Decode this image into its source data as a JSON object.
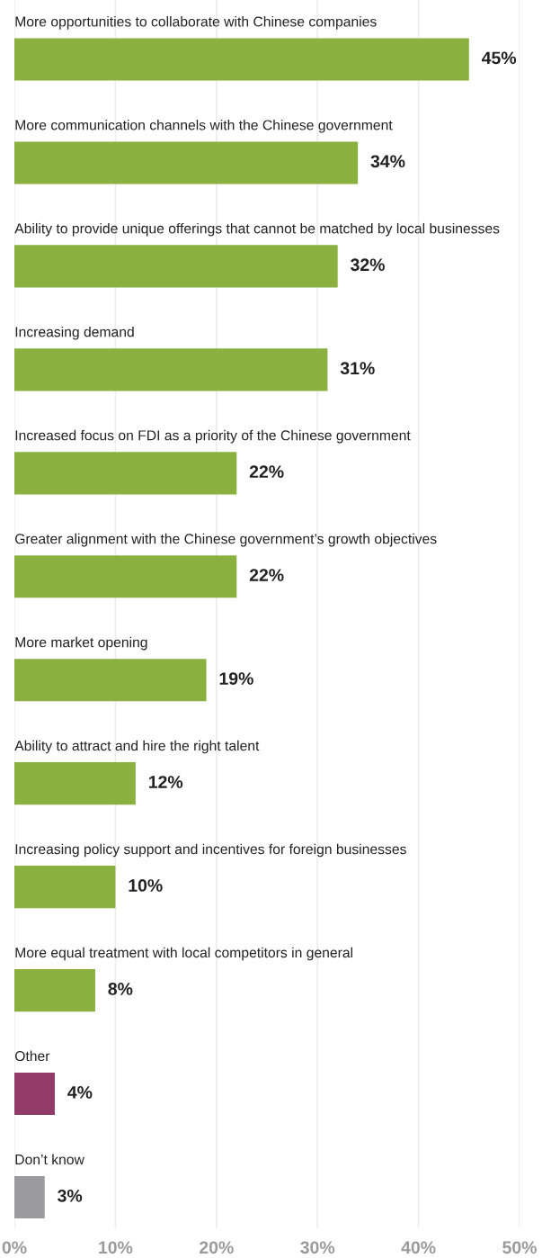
{
  "chart_data": {
    "type": "bar",
    "orientation": "horizontal",
    "categories": [
      "More opportunities to collaborate with Chinese companies",
      "More communication channels with the Chinese government",
      "Ability to provide unique offerings that cannot be matched by local businesses",
      "Increasing demand",
      "Increased focus on FDI as a priority of the Chinese government",
      "Greater alignment with the Chinese government’s growth objectives",
      "More market opening",
      "Ability to attract and hire the right talent",
      "Increasing policy support and incentives for foreign businesses",
      "More equal treatment with local competitors in general",
      "Other",
      "Don’t know"
    ],
    "values": [
      45,
      34,
      32,
      31,
      22,
      22,
      19,
      12,
      10,
      8,
      4,
      3
    ],
    "value_labels": [
      "45%",
      "34%",
      "32%",
      "31%",
      "22%",
      "22%",
      "19%",
      "12%",
      "10%",
      "8%",
      "4%",
      "3%"
    ],
    "colors": [
      "#8ab140",
      "#8ab140",
      "#8ab140",
      "#8ab140",
      "#8ab140",
      "#8ab140",
      "#8ab140",
      "#8ab140",
      "#8ab140",
      "#8ab140",
      "#923b69",
      "#9a9a9f"
    ],
    "xlim": [
      0,
      50
    ],
    "xticks": [
      {
        "value": 0,
        "label": "0%"
      },
      {
        "value": 10,
        "label": "10%"
      },
      {
        "value": 20,
        "label": "20%"
      },
      {
        "value": 30,
        "label": "30%"
      },
      {
        "value": 40,
        "label": "40%"
      },
      {
        "value": 50,
        "label": "50%"
      }
    ],
    "grid": "x"
  }
}
